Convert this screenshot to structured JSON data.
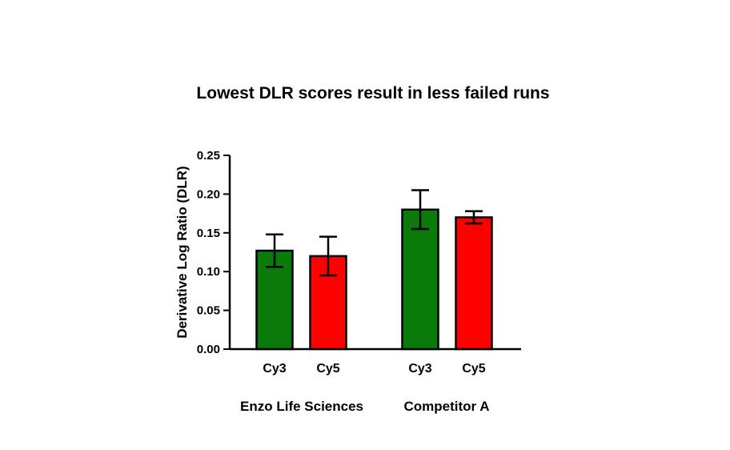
{
  "chart_data": {
    "type": "bar",
    "title": "Lowest DLR scores result in less failed runs",
    "ylabel": "Derivative Log Ratio (DLR)",
    "xlabel": "",
    "ylim": [
      0,
      0.25
    ],
    "yticks": [
      "0.00",
      "0.05",
      "0.10",
      "0.15",
      "0.20",
      "0.25"
    ],
    "grid": false,
    "groups": [
      {
        "name": "Enzo Life Sciences",
        "bars": [
          {
            "label": "Cy3",
            "value": 0.127,
            "error": 0.021,
            "color": "#0a7a0a"
          },
          {
            "label": "Cy5",
            "value": 0.12,
            "error": 0.025,
            "color": "#ff0000"
          }
        ]
      },
      {
        "name": "Competitor A",
        "bars": [
          {
            "label": "Cy3",
            "value": 0.18,
            "error": 0.025,
            "color": "#0a7a0a"
          },
          {
            "label": "Cy5",
            "value": 0.17,
            "error": 0.008,
            "color": "#ff0000"
          }
        ]
      }
    ]
  }
}
